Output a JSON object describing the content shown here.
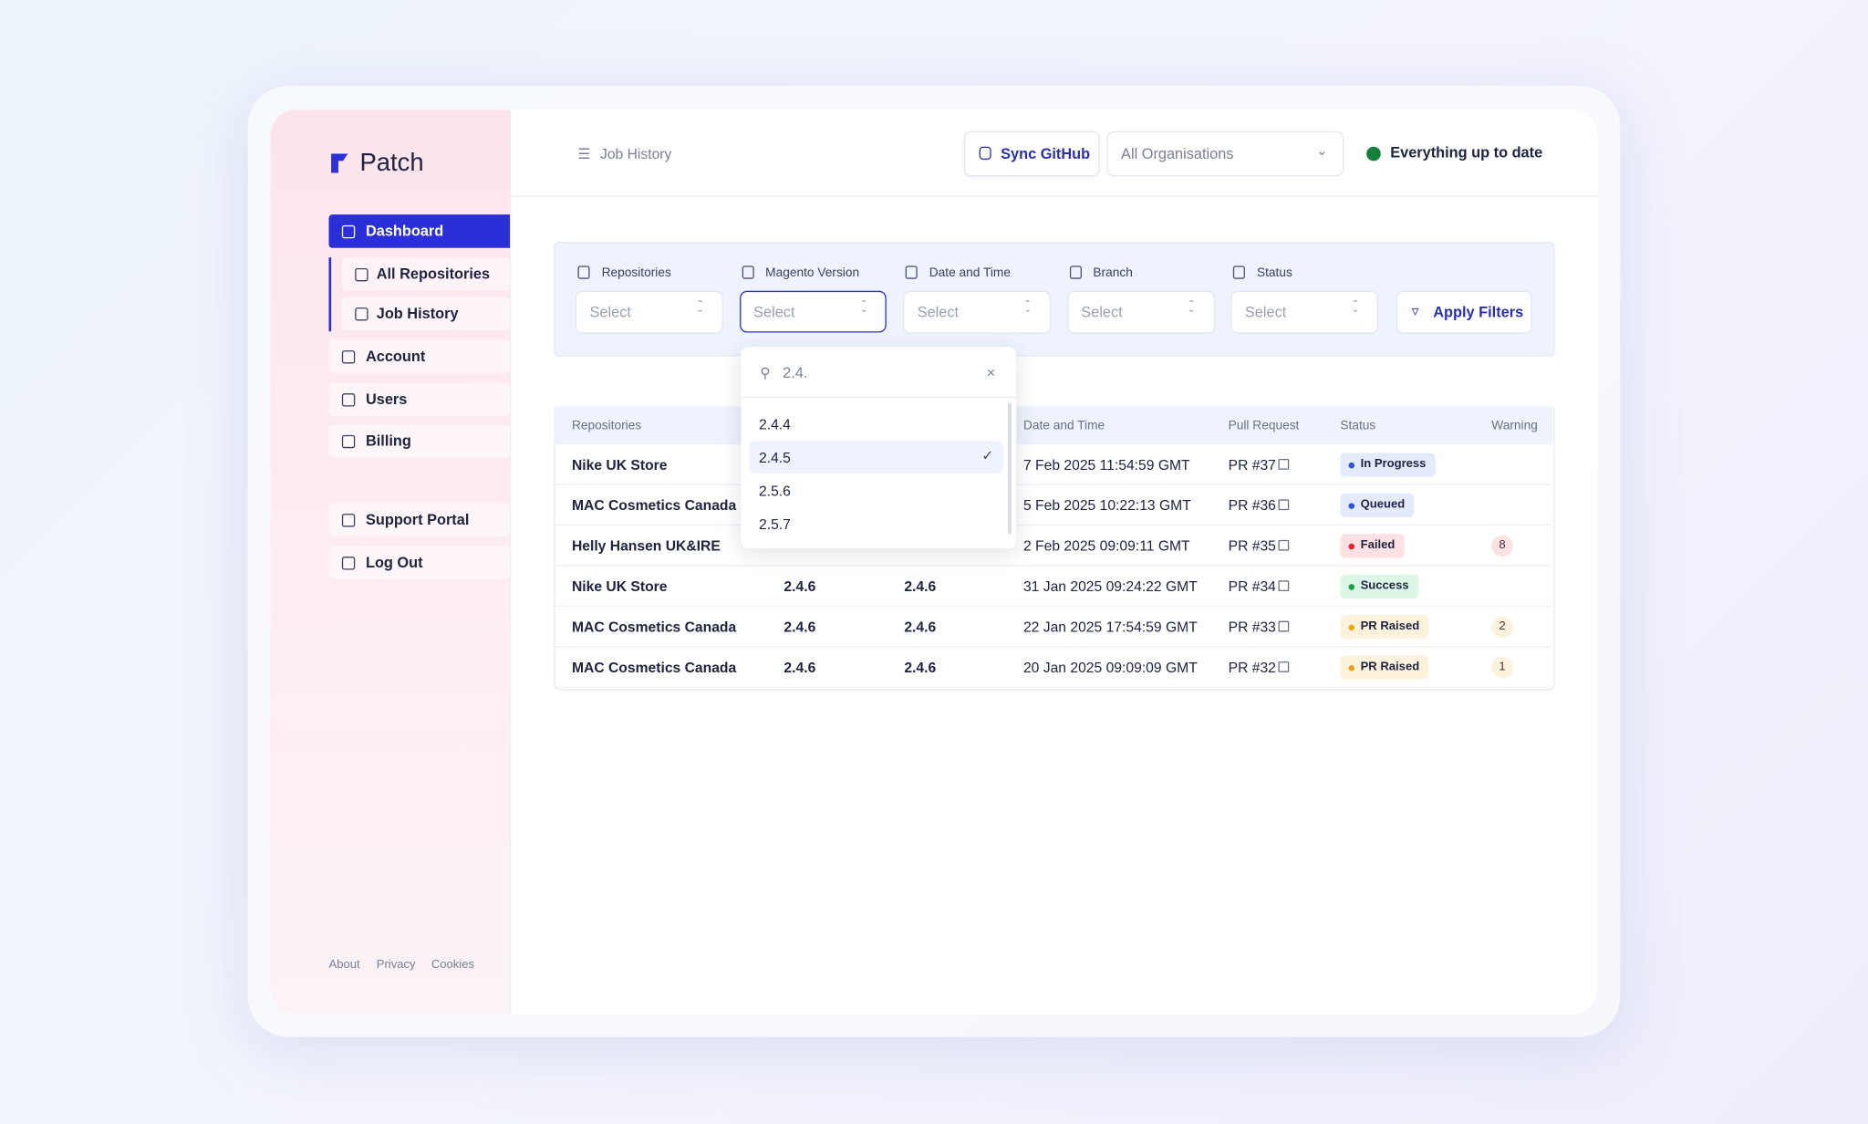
{
  "sidebar": {
    "brand": "Patch",
    "nav": [
      "Dashboard",
      "All Repositories",
      "Job History",
      "Account",
      "Users",
      "Billing"
    ],
    "links": [
      "Support Portal",
      "Log Out"
    ],
    "footer": [
      "About",
      "Privacy",
      "Cookies"
    ]
  },
  "header": {
    "breadcrumb": "Job History",
    "sync": "Sync GitHub",
    "organisation": "All Organisations",
    "status": "Everything up to date"
  },
  "filters": {
    "fields": [
      {
        "label": "Repositories",
        "placeholder": "Select"
      },
      {
        "label": "Magento Version",
        "placeholder": "Select"
      },
      {
        "label": "Date and Time",
        "placeholder": "Select"
      },
      {
        "label": "Branch",
        "placeholder": "Select"
      },
      {
        "label": "Status",
        "placeholder": "Select"
      }
    ],
    "apply": "Apply Filters"
  },
  "dropdown": {
    "search": "2.4.",
    "options": [
      "2.4.4",
      "2.4.5",
      "2.5.6",
      "2.5.7"
    ],
    "selected": 1
  },
  "table": {
    "columns": [
      "Repositories",
      null,
      null,
      "Date and Time",
      "Pull Request",
      "Status",
      "Warning"
    ],
    "rows": [
      {
        "cells": [
          "Nike UK Store",
          null,
          null,
          "7 Feb 2025 11:54:59 GMT",
          "PR #37",
          "In Progress",
          null
        ],
        "status_color": "#2f55d4",
        "status_bg": "#e4ebfd",
        "warning_bg": null
      },
      {
        "cells": [
          "MAC Cosmetics Canada",
          null,
          null,
          "5 Feb 2025 10:22:13 GMT",
          "PR #36",
          "Queued",
          null
        ],
        "status_color": "#2f55d4",
        "status_bg": "#e4ebfd",
        "warning_bg": null
      },
      {
        "cells": [
          "Helly Hansen UK&IRE",
          null,
          null,
          "2 Feb 2025 09:09:11 GMT",
          "PR #35",
          "Failed",
          "8"
        ],
        "status_color": "#e0243a",
        "status_bg": "#fde1e3",
        "warning_bg": "#fde1e3"
      },
      {
        "cells": [
          "Nike UK Store",
          "2.4.6",
          "2.4.6",
          "31 Jan 2025 09:24:22 GMT",
          "PR #34",
          "Success",
          null
        ],
        "status_color": "#1a9e4b",
        "status_bg": "#dcf7e6",
        "warning_bg": null
      },
      {
        "cells": [
          "MAC Cosmetics Canada",
          "2.4.6",
          "2.4.6",
          "22 Jan 2025 17:54:59 GMT",
          "PR #33",
          "PR Raised",
          "2"
        ],
        "status_color": "#e8a317",
        "status_bg": "#fdf3dc",
        "warning_bg": "#fdf3dc"
      },
      {
        "cells": [
          "MAC Cosmetics Canada",
          "2.4.6",
          "2.4.6",
          "20 Jan 2025 09:09:09 GMT",
          "PR #32",
          "PR Raised",
          "1"
        ],
        "status_color": "#e8a317",
        "status_bg": "#fdf3dc",
        "warning_bg": "#fdf3dc"
      }
    ]
  }
}
